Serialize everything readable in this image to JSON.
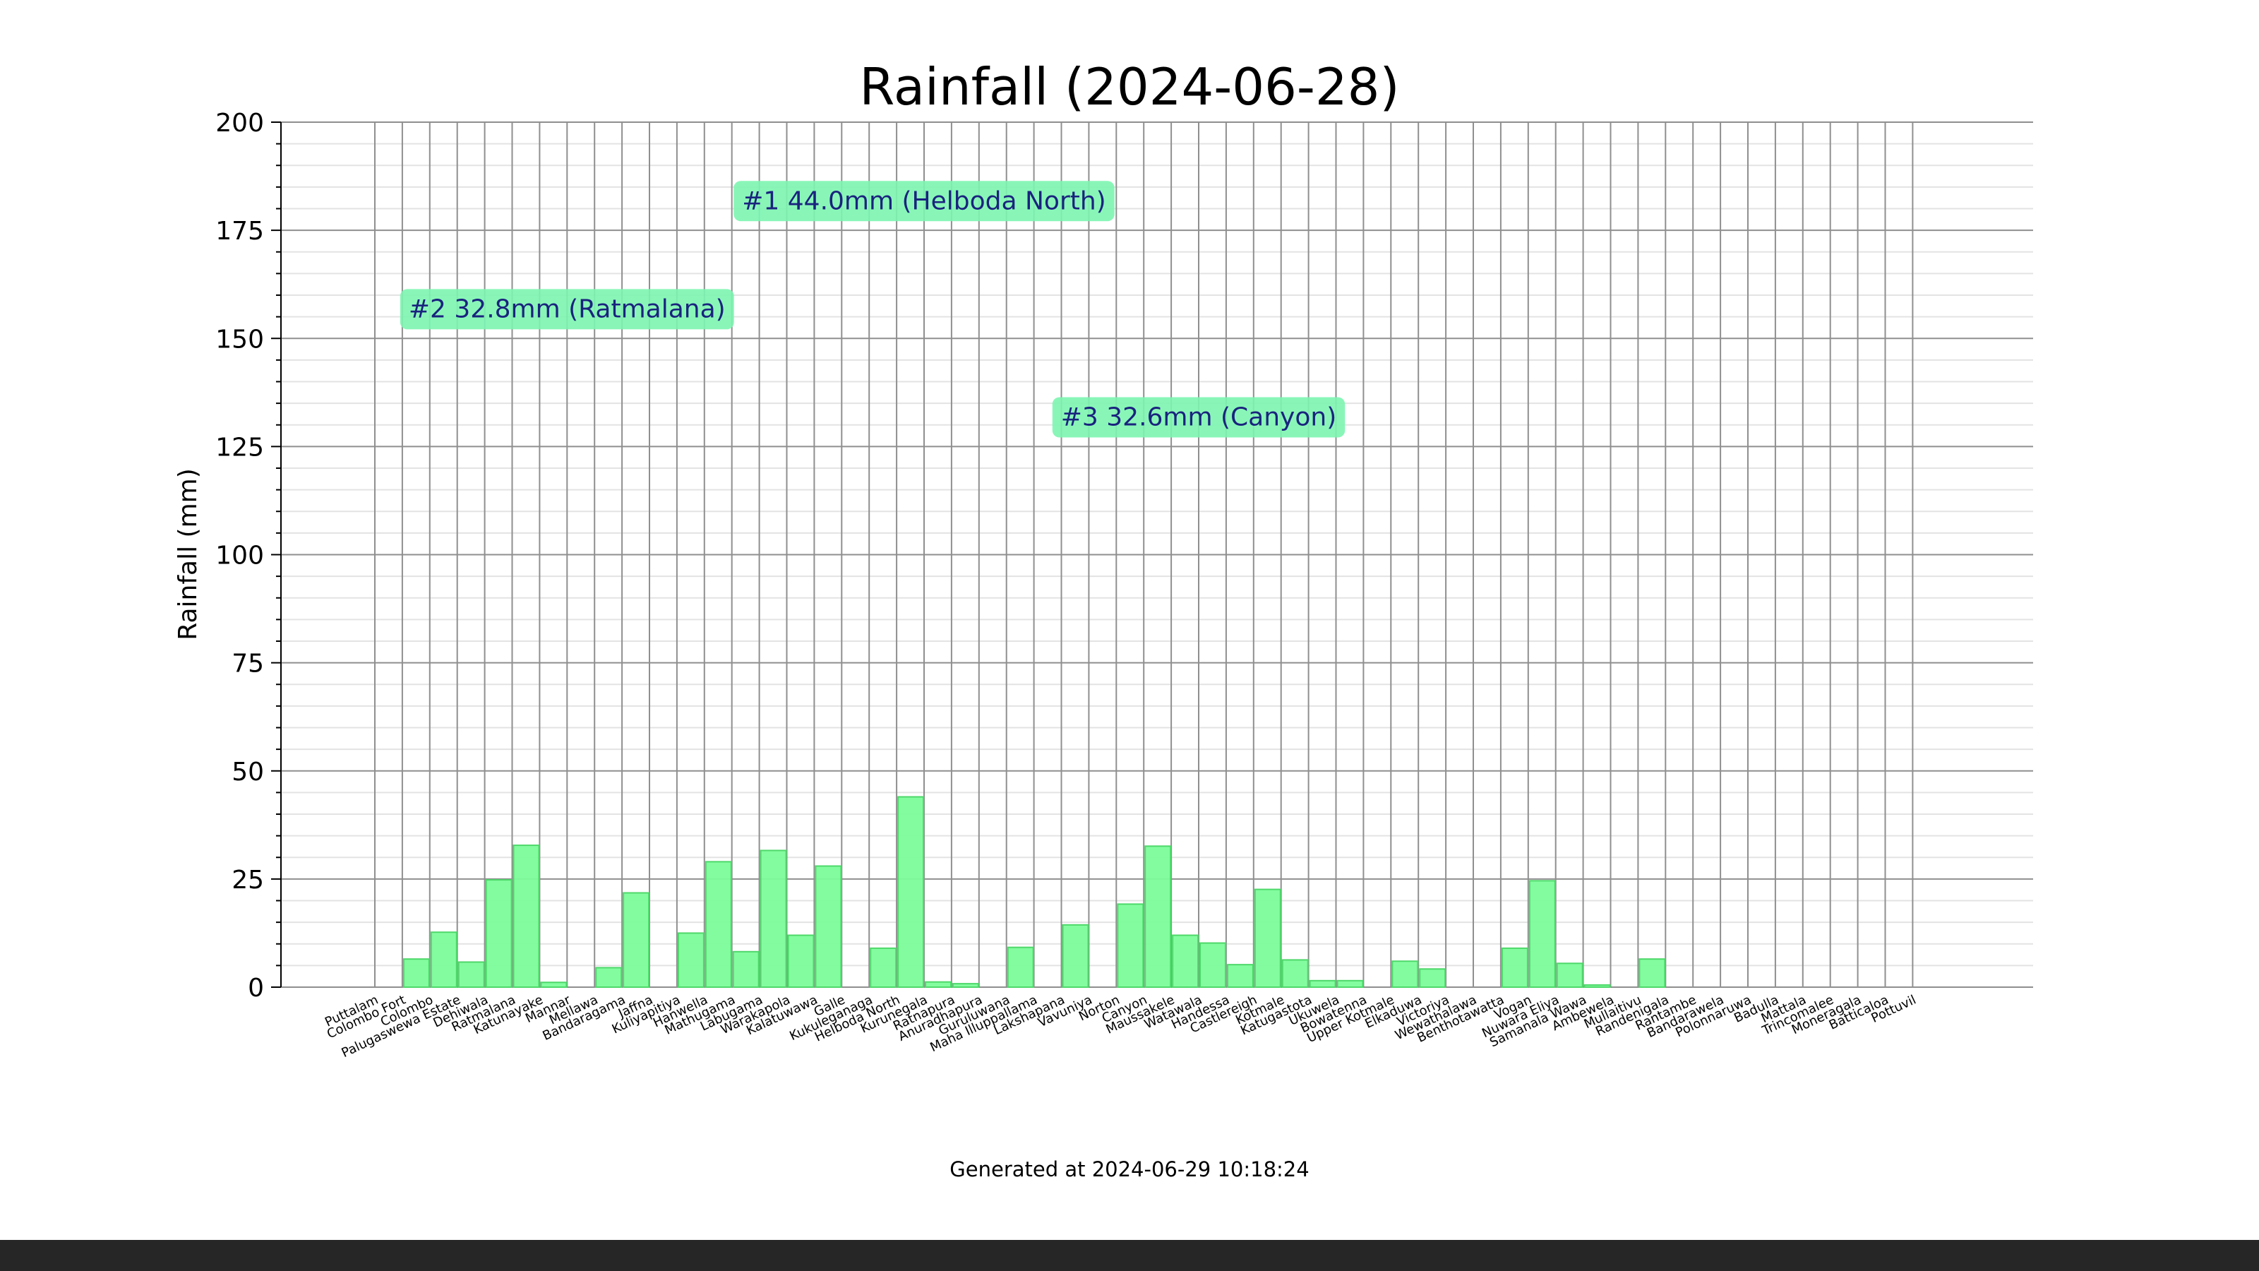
{
  "footer_text": "Generated at 2024-06-29 10:18:24",
  "chart_data": {
    "type": "bar",
    "title": "Rainfall (2024-06-28)",
    "xlabel": "",
    "ylabel": "Rainfall (mm)",
    "ylim": [
      0,
      200
    ],
    "yticks": [
      0,
      25,
      50,
      75,
      100,
      125,
      150,
      175,
      200
    ],
    "grid": true,
    "bar_color": "#7CFC9A",
    "bar_edge_color": "#4ED86A",
    "annotation_bg": "#7CF5B0",
    "annotation_text_color": "#1a237e",
    "categories": [
      "Puttalam",
      "Colombo Fort",
      "Colombo",
      "Palugaswewa Estate",
      "Dehiwala",
      "Ratmalana",
      "Katunayake",
      "Mannar",
      "Mellawa",
      "Bandaragama",
      "Jaffna",
      "Kuliyapitiya",
      "Hanwella",
      "Mathugama",
      "Labugama",
      "Warakapola",
      "Kalatuwawa",
      "Galle",
      "Kukuleganaga",
      "Helboda North",
      "Kurunegala",
      "Ratnapura",
      "Anuradhapura",
      "Guruluwana",
      "Maha Illuppallama",
      "Lakshapana",
      "Vavuniya",
      "Norton",
      "Canyon",
      "Maussakele",
      "Watawala",
      "Handessa",
      "Castlereigh",
      "Kotmale",
      "Katugastota",
      "Ukuwela",
      "Bowatenna",
      "Upper Kotmale",
      "Elkaduwa",
      "Victoriya",
      "Wewathalawa",
      "Benthotawatta",
      "Vogan",
      "Nuwara Eliya",
      "Samanala Wawa",
      "Ambewela",
      "Mullaitivu",
      "Randenigala",
      "Rantambe",
      "Bandarawela",
      "Polonnaruwa",
      "Badulla",
      "Mattala",
      "Trincomalee",
      "Moneragala",
      "Batticaloa",
      "Pottuvil"
    ],
    "values": [
      0,
      6.5,
      12.7,
      5.8,
      24.8,
      32.8,
      1.1,
      0,
      4.5,
      21.8,
      0,
      12.5,
      29.0,
      8.2,
      31.6,
      12.0,
      28.0,
      0,
      9.0,
      44.0,
      1.2,
      0.8,
      0,
      9.2,
      0,
      14.4,
      0,
      19.2,
      32.6,
      12.0,
      10.2,
      5.2,
      22.6,
      6.3,
      1.5,
      1.5,
      0,
      6.0,
      4.2,
      0,
      0,
      9.0,
      24.6,
      5.5,
      0.5,
      0,
      6.5,
      0,
      0,
      0,
      0,
      0,
      0,
      0,
      0,
      0,
      0
    ],
    "annotations": [
      {
        "text": "#1 44.0mm (Helboda North)",
        "x_category": "Kurunegala",
        "y": 182
      },
      {
        "text": "#2 32.8mm (Ratmalana)",
        "x_category": "Mannar",
        "y": 157
      },
      {
        "text": "#3 32.6mm (Canyon)",
        "x_category": "Watawala",
        "y": 132
      }
    ]
  }
}
